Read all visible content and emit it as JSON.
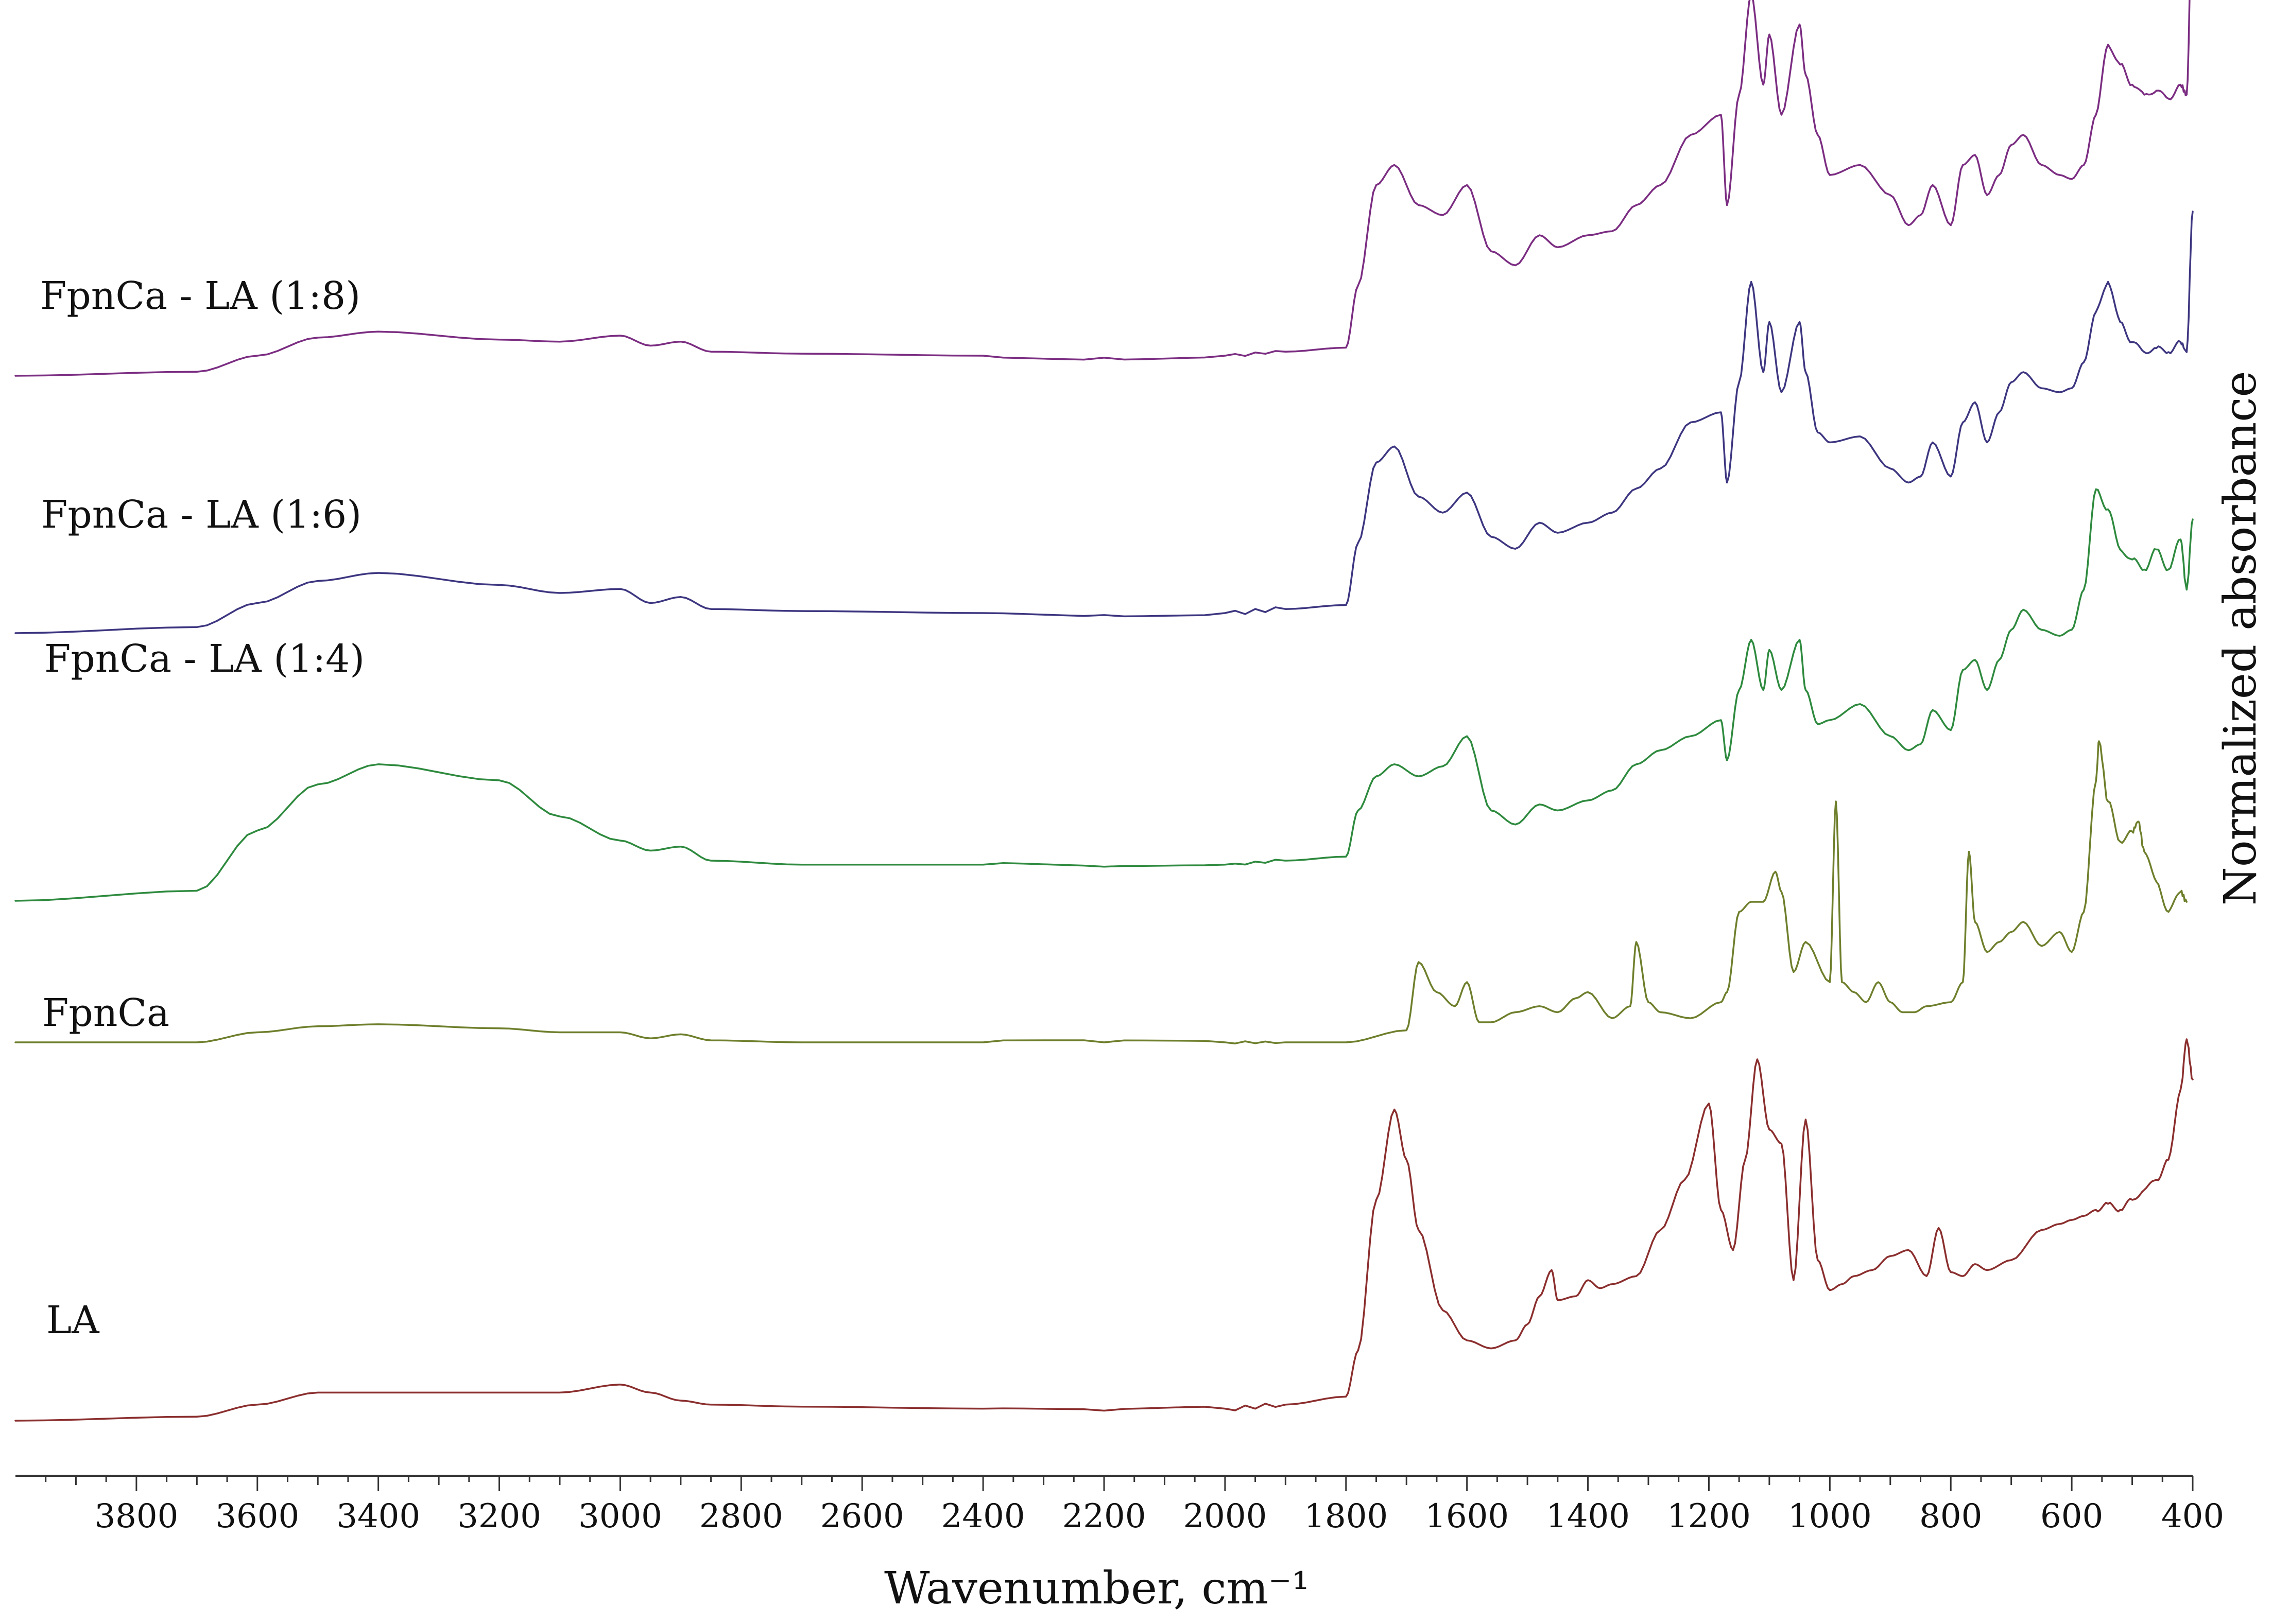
{
  "chart_data": {
    "type": "line",
    "title": "",
    "xlabel": "Wavenumber, cm⁻¹",
    "ylabel": "Normalized absorbance",
    "xlim": [
      4000,
      400
    ],
    "x_reversed": true,
    "grid": false,
    "legend": "none (labels placed to the left of each trace)",
    "x_ticks": [
      3800,
      3600,
      3400,
      3200,
      3000,
      2800,
      2600,
      2400,
      2200,
      2000,
      1800,
      1600,
      1400,
      1200,
      1000,
      800,
      600,
      400
    ],
    "y_scale": "stacked, offset traces, normalized absorbance (arbitrary units, 0 = baseline of trace)",
    "series": [
      {
        "name": "FpnCa - LA (1:8)",
        "color": "#7b2d82",
        "offset": 4,
        "x": [
          4000,
          3700,
          3600,
          3500,
          3400,
          3200,
          3100,
          3000,
          2950,
          2900,
          2850,
          2700,
          2400,
          2200,
          2000,
          1900,
          1800,
          1780,
          1750,
          1720,
          1680,
          1640,
          1600,
          1560,
          1520,
          1480,
          1450,
          1400,
          1360,
          1320,
          1280,
          1230,
          1180,
          1170,
          1150,
          1130,
          1110,
          1100,
          1080,
          1050,
          1040,
          1020,
          1000,
          950,
          900,
          870,
          850,
          830,
          800,
          780,
          760,
          740,
          720,
          700,
          680,
          650,
          620,
          600,
          580,
          560,
          540,
          520,
          500,
          480,
          460,
          440,
          420,
          410,
          400
        ],
        "y": [
          0.0,
          0.02,
          0.1,
          0.19,
          0.22,
          0.18,
          0.17,
          0.2,
          0.15,
          0.17,
          0.12,
          0.11,
          0.1,
          0.09,
          0.1,
          0.12,
          0.14,
          0.45,
          0.95,
          1.05,
          0.85,
          0.8,
          0.95,
          0.62,
          0.55,
          0.7,
          0.64,
          0.7,
          0.72,
          0.85,
          0.95,
          1.2,
          1.3,
          0.85,
          1.4,
          1.9,
          1.45,
          1.7,
          1.3,
          1.75,
          1.5,
          1.2,
          1.0,
          1.05,
          0.9,
          0.75,
          0.8,
          0.95,
          0.75,
          1.05,
          1.1,
          0.9,
          1.0,
          1.15,
          1.2,
          1.05,
          1.0,
          0.98,
          1.05,
          1.3,
          1.65,
          1.55,
          1.45,
          1.4,
          1.42,
          1.38,
          1.45,
          1.4,
          2.4
        ]
      },
      {
        "name": "FpnCa - LA (1:6)",
        "color": "#3d3680",
        "offset": 3,
        "x": [
          4000,
          3700,
          3600,
          3500,
          3400,
          3200,
          3100,
          3000,
          2950,
          2900,
          2850,
          2700,
          2400,
          2200,
          2000,
          1900,
          1800,
          1780,
          1750,
          1720,
          1680,
          1640,
          1600,
          1560,
          1520,
          1480,
          1450,
          1400,
          1360,
          1320,
          1280,
          1230,
          1180,
          1170,
          1150,
          1130,
          1110,
          1100,
          1080,
          1050,
          1040,
          1020,
          1000,
          950,
          900,
          870,
          850,
          830,
          800,
          780,
          760,
          740,
          720,
          700,
          680,
          650,
          620,
          600,
          580,
          560,
          540,
          520,
          500,
          480,
          460,
          440,
          420,
          410,
          400
        ],
        "y": [
          0.0,
          0.03,
          0.15,
          0.26,
          0.3,
          0.24,
          0.2,
          0.22,
          0.15,
          0.18,
          0.12,
          0.11,
          0.1,
          0.09,
          0.1,
          0.12,
          0.14,
          0.45,
          0.85,
          0.93,
          0.68,
          0.6,
          0.7,
          0.48,
          0.42,
          0.55,
          0.5,
          0.55,
          0.6,
          0.72,
          0.82,
          1.05,
          1.1,
          0.75,
          1.25,
          1.75,
          1.3,
          1.55,
          1.2,
          1.55,
          1.3,
          1.0,
          0.95,
          0.98,
          0.82,
          0.75,
          0.78,
          0.95,
          0.78,
          1.05,
          1.15,
          0.95,
          1.1,
          1.25,
          1.3,
          1.22,
          1.2,
          1.22,
          1.35,
          1.6,
          1.75,
          1.55,
          1.45,
          1.4,
          1.42,
          1.4,
          1.45,
          1.4,
          2.1
        ]
      },
      {
        "name": "FpnCa - LA (1:4)",
        "color": "#2e8a3e",
        "offset": 2,
        "x": [
          4000,
          3700,
          3600,
          3500,
          3400,
          3200,
          3100,
          3000,
          2950,
          2900,
          2850,
          2700,
          2400,
          2200,
          2000,
          1900,
          1800,
          1780,
          1750,
          1720,
          1680,
          1640,
          1600,
          1560,
          1520,
          1480,
          1450,
          1400,
          1360,
          1320,
          1280,
          1230,
          1180,
          1170,
          1150,
          1130,
          1110,
          1100,
          1080,
          1050,
          1040,
          1020,
          1000,
          950,
          900,
          870,
          850,
          830,
          800,
          780,
          760,
          740,
          720,
          700,
          680,
          650,
          620,
          600,
          580,
          560,
          540,
          520,
          500,
          480,
          460,
          440,
          420,
          410,
          400
        ],
        "y": [
          0.0,
          0.05,
          0.35,
          0.58,
          0.68,
          0.6,
          0.42,
          0.3,
          0.25,
          0.27,
          0.2,
          0.18,
          0.18,
          0.17,
          0.18,
          0.2,
          0.22,
          0.45,
          0.62,
          0.68,
          0.62,
          0.67,
          0.82,
          0.45,
          0.38,
          0.48,
          0.45,
          0.5,
          0.55,
          0.68,
          0.75,
          0.82,
          0.9,
          0.7,
          1.05,
          1.3,
          1.05,
          1.25,
          1.05,
          1.3,
          1.05,
          0.88,
          0.9,
          0.98,
          0.82,
          0.75,
          0.78,
          0.95,
          0.85,
          1.15,
          1.2,
          1.05,
          1.2,
          1.35,
          1.45,
          1.35,
          1.32,
          1.35,
          1.55,
          2.05,
          1.95,
          1.75,
          1.7,
          1.65,
          1.75,
          1.65,
          1.8,
          1.55,
          1.9
        ]
      },
      {
        "name": "FpnCa",
        "color": "#6e7f2c",
        "offset": 1,
        "x": [
          4000,
          3700,
          3600,
          3500,
          3400,
          3200,
          3100,
          3000,
          2950,
          2900,
          2850,
          2700,
          2400,
          2200,
          2000,
          1900,
          1800,
          1700,
          1680,
          1650,
          1620,
          1600,
          1580,
          1560,
          1520,
          1480,
          1450,
          1420,
          1400,
          1360,
          1330,
          1320,
          1300,
          1280,
          1230,
          1180,
          1170,
          1150,
          1130,
          1110,
          1090,
          1080,
          1060,
          1040,
          1000,
          990,
          980,
          960,
          940,
          920,
          900,
          880,
          860,
          840,
          800,
          780,
          770,
          760,
          740,
          720,
          700,
          680,
          650,
          620,
          600,
          580,
          560,
          555,
          540,
          520,
          500,
          490,
          480,
          460,
          440,
          420,
          410
        ],
        "y": [
          0.0,
          0.0,
          0.05,
          0.08,
          0.09,
          0.07,
          0.05,
          0.05,
          0.02,
          0.04,
          0.01,
          0.0,
          0.0,
          0.0,
          0.0,
          0.0,
          0.0,
          0.06,
          0.4,
          0.25,
          0.18,
          0.3,
          0.1,
          0.1,
          0.15,
          0.18,
          0.15,
          0.22,
          0.25,
          0.12,
          0.18,
          0.5,
          0.2,
          0.15,
          0.12,
          0.2,
          0.25,
          0.65,
          0.7,
          0.7,
          0.85,
          0.75,
          0.35,
          0.5,
          0.3,
          1.2,
          0.3,
          0.25,
          0.2,
          0.3,
          0.2,
          0.15,
          0.15,
          0.18,
          0.2,
          0.3,
          0.95,
          0.6,
          0.45,
          0.5,
          0.55,
          0.6,
          0.48,
          0.55,
          0.45,
          0.65,
          1.3,
          1.5,
          1.2,
          1.0,
          1.05,
          1.1,
          0.95,
          0.8,
          0.65,
          0.75,
          0.7
        ]
      },
      {
        "name": "LA",
        "color": "#8b2e2e",
        "offset": 0,
        "x": [
          4000,
          3700,
          3600,
          3500,
          3400,
          3200,
          3100,
          3000,
          2950,
          2900,
          2850,
          2700,
          2400,
          2200,
          2000,
          1900,
          1800,
          1780,
          1750,
          1720,
          1700,
          1680,
          1640,
          1600,
          1560,
          1520,
          1500,
          1480,
          1460,
          1450,
          1420,
          1400,
          1380,
          1360,
          1320,
          1280,
          1240,
          1200,
          1180,
          1160,
          1140,
          1120,
          1100,
          1080,
          1060,
          1040,
          1020,
          1000,
          980,
          960,
          930,
          900,
          870,
          840,
          820,
          800,
          780,
          760,
          740,
          700,
          650,
          620,
          600,
          580,
          560,
          540,
          520,
          500,
          480,
          460,
          440,
          420,
          410,
          400
        ],
        "y": [
          0.0,
          0.02,
          0.08,
          0.14,
          0.14,
          0.14,
          0.14,
          0.18,
          0.14,
          0.1,
          0.08,
          0.07,
          0.06,
          0.05,
          0.06,
          0.08,
          0.12,
          0.35,
          1.1,
          1.55,
          1.3,
          0.95,
          0.55,
          0.4,
          0.36,
          0.4,
          0.48,
          0.62,
          0.75,
          0.6,
          0.62,
          0.7,
          0.66,
          0.68,
          0.72,
          0.95,
          1.2,
          1.58,
          1.05,
          0.85,
          1.3,
          1.8,
          1.45,
          1.38,
          0.7,
          1.5,
          0.8,
          0.65,
          0.68,
          0.72,
          0.75,
          0.82,
          0.85,
          0.72,
          0.96,
          0.74,
          0.72,
          0.78,
          0.75,
          0.8,
          0.95,
          0.98,
          1.0,
          1.02,
          1.05,
          1.08,
          1.05,
          1.1,
          1.15,
          1.2,
          1.3,
          1.65,
          1.9,
          1.7
        ]
      }
    ]
  }
}
